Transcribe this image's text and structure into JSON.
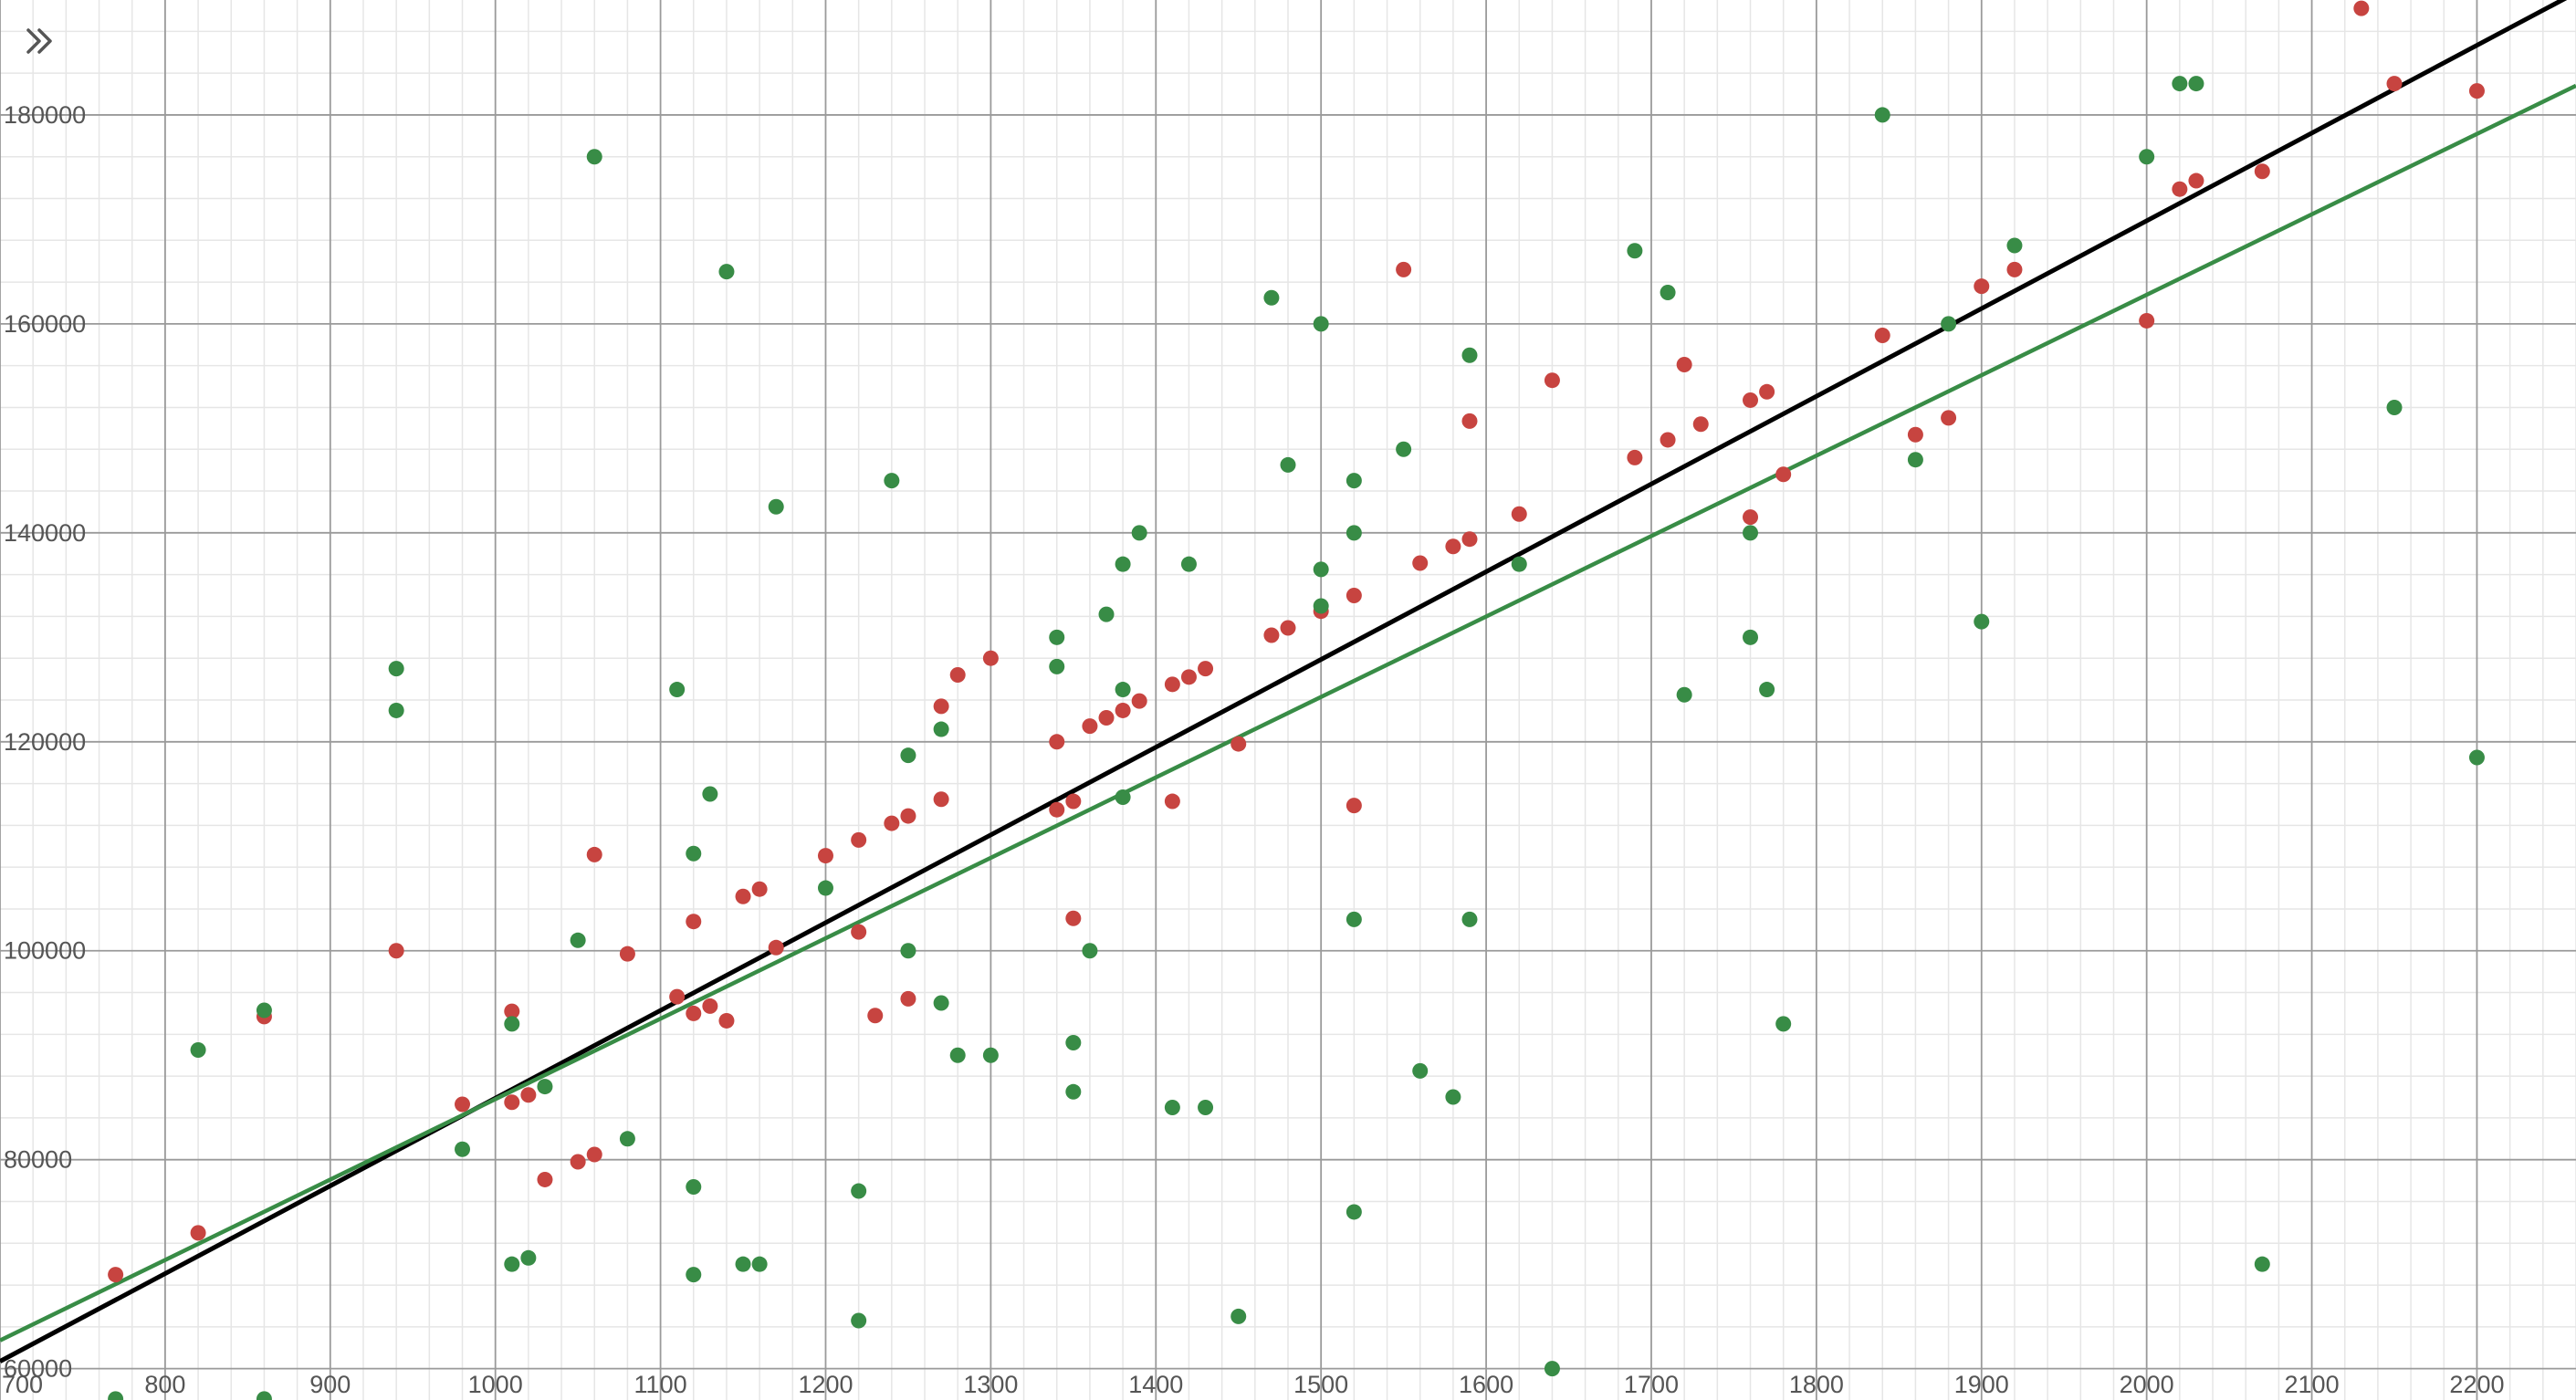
{
  "controls": {
    "expand_icon": "double-chevron-right-icon"
  },
  "colors": {
    "red_points": "#c74440",
    "green_points": "#388c46",
    "black_line": "#000000",
    "green_line": "#388c46",
    "minor_grid": "#e6e6e6",
    "major_grid": "#9a9a9a",
    "tick_label": "#555555"
  },
  "chart_data": {
    "type": "scatter",
    "xlim": [
      700,
      2260
    ],
    "ylim": [
      57000,
      191000
    ],
    "grid": true,
    "x_ticks": [
      {
        "value": 700,
        "label": "700"
      },
      {
        "value": 800,
        "label": "800"
      },
      {
        "value": 900,
        "label": "900"
      },
      {
        "value": 1000,
        "label": "1000"
      },
      {
        "value": 1100,
        "label": "1100"
      },
      {
        "value": 1200,
        "label": "1200"
      },
      {
        "value": 1300,
        "label": "1300"
      },
      {
        "value": 1400,
        "label": "1400"
      },
      {
        "value": 1500,
        "label": "1500"
      },
      {
        "value": 1600,
        "label": "1600"
      },
      {
        "value": 1700,
        "label": "1700"
      },
      {
        "value": 1800,
        "label": "1800"
      },
      {
        "value": 1900,
        "label": "1900"
      },
      {
        "value": 2000,
        "label": "2000"
      },
      {
        "value": 2100,
        "label": "2100"
      },
      {
        "value": 2200,
        "label": "2200"
      }
    ],
    "y_ticks": [
      {
        "value": 60000,
        "label": "60000"
      },
      {
        "value": 80000,
        "label": "80000"
      },
      {
        "value": 100000,
        "label": "100000"
      },
      {
        "value": 120000,
        "label": "120000"
      },
      {
        "value": 140000,
        "label": "140000"
      },
      {
        "value": 160000,
        "label": "160000"
      },
      {
        "value": 180000,
        "label": "180000"
      }
    ],
    "series": [
      {
        "color": "red",
        "points": [
          [
            770,
            69000
          ],
          [
            820,
            73000
          ],
          [
            860,
            93700
          ],
          [
            940,
            100000
          ],
          [
            980,
            85300
          ],
          [
            1010,
            94200
          ],
          [
            1010,
            85500
          ],
          [
            1020,
            86200
          ],
          [
            1030,
            78100
          ],
          [
            1050,
            79800
          ],
          [
            1060,
            80500
          ],
          [
            1060,
            109200
          ],
          [
            1080,
            99700
          ],
          [
            1110,
            95600
          ],
          [
            1120,
            94000
          ],
          [
            1120,
            102800
          ],
          [
            1130,
            94700
          ],
          [
            1140,
            93300
          ],
          [
            1150,
            105200
          ],
          [
            1160,
            105900
          ],
          [
            1170,
            100300
          ],
          [
            1200,
            109100
          ],
          [
            1220,
            110600
          ],
          [
            1220,
            101800
          ],
          [
            1230,
            93800
          ],
          [
            1240,
            112200
          ],
          [
            1250,
            112900
          ],
          [
            1250,
            95400
          ],
          [
            1270,
            114500
          ],
          [
            1270,
            123400
          ],
          [
            1280,
            126400
          ],
          [
            1300,
            128000
          ],
          [
            1340,
            120000
          ],
          [
            1340,
            113500
          ],
          [
            1350,
            114300
          ],
          [
            1350,
            103100
          ],
          [
            1360,
            121500
          ],
          [
            1370,
            122300
          ],
          [
            1380,
            123000
          ],
          [
            1390,
            123900
          ],
          [
            1410,
            125500
          ],
          [
            1410,
            114300
          ],
          [
            1420,
            126200
          ],
          [
            1430,
            127000
          ],
          [
            1450,
            119800
          ],
          [
            1470,
            130200
          ],
          [
            1480,
            130900
          ],
          [
            1500,
            132500
          ],
          [
            1520,
            134000
          ],
          [
            1520,
            113900
          ],
          [
            1550,
            165200
          ],
          [
            1560,
            137100
          ],
          [
            1580,
            138700
          ],
          [
            1590,
            139400
          ],
          [
            1590,
            150700
          ],
          [
            1620,
            141800
          ],
          [
            1640,
            154600
          ],
          [
            1690,
            147200
          ],
          [
            1710,
            148900
          ],
          [
            1720,
            156100
          ],
          [
            1730,
            150400
          ],
          [
            1760,
            152700
          ],
          [
            1760,
            141500
          ],
          [
            1770,
            153500
          ],
          [
            1780,
            145600
          ],
          [
            1840,
            158900
          ],
          [
            1860,
            149400
          ],
          [
            1880,
            151000
          ],
          [
            1900,
            163600
          ],
          [
            1920,
            165200
          ],
          [
            2000,
            160300
          ],
          [
            2020,
            172900
          ],
          [
            2030,
            173700
          ],
          [
            2070,
            174600
          ],
          [
            2130,
            190200
          ],
          [
            2150,
            183000
          ],
          [
            2200,
            182300
          ]
        ]
      },
      {
        "color": "green",
        "points": [
          [
            770,
            57100
          ],
          [
            820,
            90500
          ],
          [
            860,
            94300
          ],
          [
            860,
            57100
          ],
          [
            940,
            127000
          ],
          [
            940,
            123000
          ],
          [
            980,
            81000
          ],
          [
            1010,
            93000
          ],
          [
            1010,
            70000
          ],
          [
            1020,
            70600
          ],
          [
            1030,
            87000
          ],
          [
            1050,
            101000
          ],
          [
            1060,
            176000
          ],
          [
            1080,
            82000
          ],
          [
            1110,
            125000
          ],
          [
            1120,
            109300
          ],
          [
            1120,
            77400
          ],
          [
            1120,
            69000
          ],
          [
            1130,
            115000
          ],
          [
            1140,
            165000
          ],
          [
            1150,
            70000
          ],
          [
            1160,
            70000
          ],
          [
            1170,
            142500
          ],
          [
            1200,
            106000
          ],
          [
            1220,
            77000
          ],
          [
            1220,
            64600
          ],
          [
            1240,
            145000
          ],
          [
            1250,
            118700
          ],
          [
            1250,
            100000
          ],
          [
            1270,
            121200
          ],
          [
            1270,
            95000
          ],
          [
            1280,
            90000
          ],
          [
            1300,
            90000
          ],
          [
            1340,
            130000
          ],
          [
            1340,
            127200
          ],
          [
            1350,
            91200
          ],
          [
            1350,
            86500
          ],
          [
            1360,
            100000
          ],
          [
            1370,
            132200
          ],
          [
            1380,
            137000
          ],
          [
            1380,
            125000
          ],
          [
            1380,
            114700
          ],
          [
            1390,
            140000
          ],
          [
            1410,
            85000
          ],
          [
            1420,
            137000
          ],
          [
            1430,
            85000
          ],
          [
            1450,
            65000
          ],
          [
            1470,
            162500
          ],
          [
            1480,
            146500
          ],
          [
            1500,
            160000
          ],
          [
            1500,
            136500
          ],
          [
            1500,
            133000
          ],
          [
            1520,
            145000
          ],
          [
            1520,
            140000
          ],
          [
            1520,
            103000
          ],
          [
            1520,
            75000
          ],
          [
            1550,
            148000
          ],
          [
            1560,
            88500
          ],
          [
            1580,
            86000
          ],
          [
            1590,
            157000
          ],
          [
            1590,
            103000
          ],
          [
            1620,
            137000
          ],
          [
            1640,
            60000
          ],
          [
            1690,
            167000
          ],
          [
            1710,
            163000
          ],
          [
            1720,
            124500
          ],
          [
            1760,
            140000
          ],
          [
            1760,
            130000
          ],
          [
            1770,
            125000
          ],
          [
            1780,
            93000
          ],
          [
            1840,
            180000
          ],
          [
            1860,
            147000
          ],
          [
            1880,
            160000
          ],
          [
            1900,
            131500
          ],
          [
            1920,
            167500
          ],
          [
            2000,
            176000
          ],
          [
            2020,
            183000
          ],
          [
            2030,
            183000
          ],
          [
            2070,
            70000
          ],
          [
            2150,
            152000
          ],
          [
            2200,
            118500
          ]
        ]
      }
    ],
    "lines": [
      {
        "color": "black",
        "from": [
          700,
          60700
        ],
        "to": [
          2260,
          191700
        ]
      },
      {
        "color": "green",
        "from": [
          700,
          62700
        ],
        "to": [
          2260,
          182800
        ]
      }
    ]
  }
}
